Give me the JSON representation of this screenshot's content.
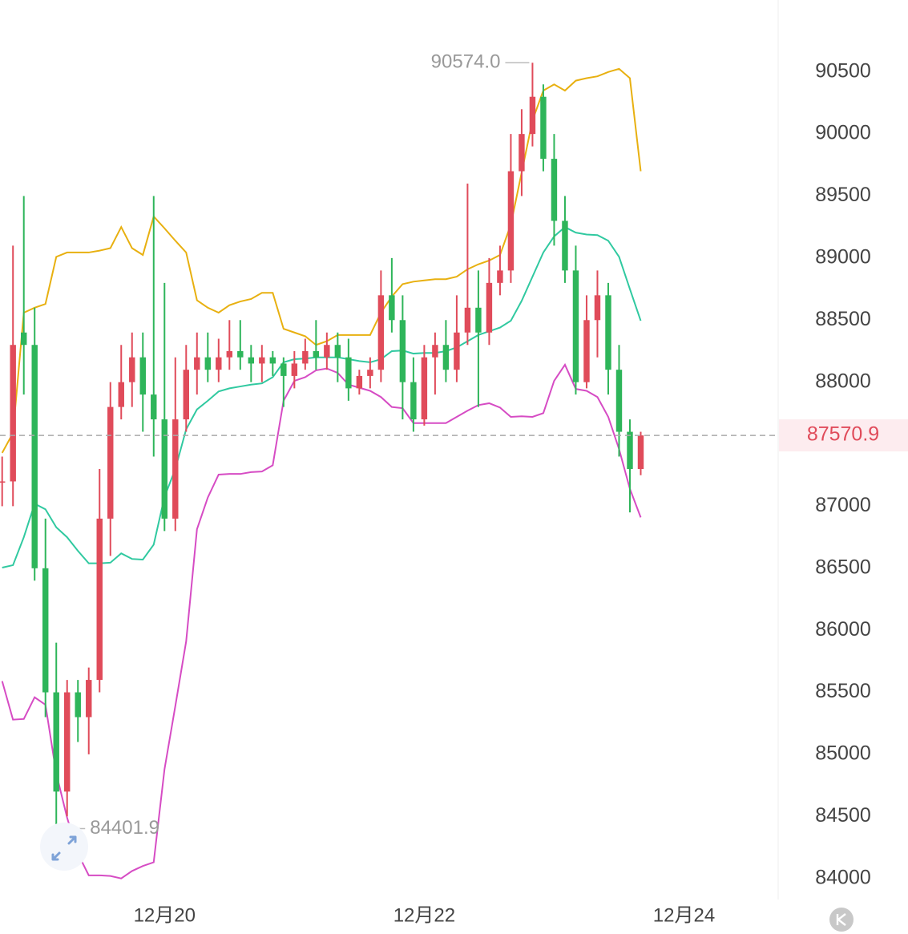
{
  "chart_data": {
    "type": "candlestick",
    "ylim": [
      83830,
      91080
    ],
    "yticks": [
      84000,
      84500,
      85000,
      85500,
      86000,
      86500,
      87000,
      87500,
      88000,
      88500,
      89000,
      89500,
      90000,
      90500
    ],
    "xlim": [
      -0.2,
      71.7
    ],
    "xticks": [
      {
        "value": 15,
        "label": "12月20"
      },
      {
        "value": 39,
        "label": "12月22"
      },
      {
        "value": 63,
        "label": "12月24"
      }
    ],
    "grid": true,
    "up_color": "#e04b5a",
    "down_color": "#2eb55a",
    "candles": {
      "open": [
        87200,
        87200,
        88400,
        88300,
        86500,
        85500,
        84700,
        85500,
        85300,
        85600,
        86900,
        87800,
        88000,
        88200,
        87900,
        87700,
        86900,
        87700,
        88100,
        88200,
        88100,
        88200,
        88250,
        88200,
        88150,
        88200,
        88150,
        88050,
        88150,
        88250,
        88200,
        88300,
        88200,
        87950,
        88050,
        88100,
        88700,
        88500,
        88000,
        87700,
        88200,
        88300,
        88100,
        88400,
        88600,
        88400,
        88800,
        88900,
        89700,
        90000,
        90300,
        89800,
        89300,
        88900,
        88000,
        88500,
        88700,
        88100,
        87600,
        87300
      ],
      "high": [
        87400,
        89100,
        89500,
        88600,
        86900,
        85900,
        85600,
        85600,
        85700,
        87300,
        88000,
        88300,
        88400,
        88400,
        89500,
        88800,
        88200,
        88300,
        88400,
        88400,
        88350,
        88500,
        88500,
        88300,
        88300,
        88250,
        88200,
        88250,
        88350,
        88500,
        88400,
        88400,
        88350,
        88100,
        88200,
        88900,
        89000,
        88700,
        88200,
        88300,
        88400,
        88500,
        88700,
        89600,
        88900,
        89000,
        89100,
        90000,
        90200,
        90574,
        90400,
        90000,
        89500,
        89100,
        88700,
        88900,
        88800,
        88300,
        87700,
        87600
      ],
      "low": [
        87000,
        87000,
        87900,
        86400,
        85300,
        84401.9,
        84500,
        85100,
        85000,
        85500,
        86600,
        87700,
        87800,
        87600,
        87400,
        86800,
        86800,
        87600,
        87900,
        88000,
        88000,
        88100,
        88100,
        88000,
        88000,
        88050,
        87800,
        87950,
        88100,
        88100,
        88100,
        88000,
        87850,
        87900,
        87950,
        88000,
        88400,
        87700,
        87600,
        87650,
        87900,
        88000,
        88000,
        88300,
        87800,
        88300,
        88700,
        88800,
        89500,
        89900,
        89700,
        89100,
        88800,
        87900,
        87950,
        88200,
        87900,
        87400,
        86950,
        87250
      ],
      "close": [
        87200,
        88300,
        88300,
        86500,
        85500,
        84700,
        85500,
        85300,
        85600,
        86900,
        87800,
        88000,
        88200,
        87900,
        87700,
        86900,
        87700,
        88100,
        88200,
        88100,
        88200,
        88250,
        88200,
        88150,
        88200,
        88150,
        88050,
        88150,
        88250,
        88200,
        88300,
        88200,
        87950,
        88050,
        88100,
        88700,
        88500,
        88000,
        87700,
        88200,
        88300,
        88100,
        88400,
        88600,
        88400,
        88800,
        88900,
        89700,
        90000,
        90300,
        89800,
        89300,
        88900,
        88000,
        88500,
        88700,
        88100,
        87600,
        87300,
        87570.9
      ]
    },
    "series": [
      {
        "color": "#e8b010",
        "values": [
          87430,
          87590,
          88560,
          88600,
          88630,
          89010,
          89045,
          89045,
          89045,
          89060,
          89080,
          89250,
          89080,
          89025,
          89335,
          89240,
          89140,
          89045,
          88660,
          88600,
          88560,
          88620,
          88650,
          88670,
          88720,
          88720,
          88430,
          88400,
          88370,
          88300,
          88330,
          88380,
          88380,
          88380,
          88380,
          88560,
          88690,
          88790,
          88810,
          88820,
          88830,
          88830,
          88850,
          88910,
          88950,
          88980,
          89025,
          89270,
          89690,
          90110,
          90350,
          90400,
          90350,
          90430,
          90450,
          90465,
          90500,
          90525,
          90450,
          89700
        ]
      },
      {
        "color": "#30c9a0",
        "values": [
          86505,
          86525,
          86750,
          87020,
          86975,
          86830,
          86750,
          86640,
          86540,
          86540,
          86545,
          86620,
          86575,
          86570,
          86690,
          87075,
          87300,
          87620,
          87780,
          87850,
          87925,
          87950,
          87965,
          87980,
          87990,
          88040,
          88160,
          88185,
          88190,
          88200,
          88200,
          88200,
          88185,
          88170,
          88160,
          88185,
          88250,
          88255,
          88230,
          88235,
          88235,
          88250,
          88280,
          88330,
          88380,
          88410,
          88440,
          88495,
          88655,
          88850,
          89045,
          89175,
          89250,
          89205,
          89190,
          89185,
          89140,
          89010,
          88750,
          88495
        ]
      },
      {
        "color": "#d64cc4",
        "values": [
          85590,
          85280,
          85285,
          85460,
          85400,
          84845,
          84490,
          84200,
          84025,
          84025,
          84020,
          84000,
          84060,
          84100,
          84130,
          84880,
          85390,
          85910,
          86815,
          87070,
          87255,
          87260,
          87260,
          87275,
          87280,
          87330,
          87850,
          88010,
          88040,
          88095,
          88110,
          88075,
          87980,
          87955,
          87930,
          87880,
          87800,
          87790,
          87670,
          87670,
          87670,
          87670,
          87720,
          87770,
          87815,
          87830,
          87795,
          87720,
          87725,
          87720,
          87750,
          88010,
          88140,
          87945,
          87930,
          87880,
          87720,
          87460,
          87140,
          86910
        ]
      }
    ],
    "last_price": 87570.9,
    "annotations": [
      {
        "value": 90574,
        "label": "90574.0"
      },
      {
        "value": 84401.9,
        "label": "84401.9"
      }
    ]
  }
}
